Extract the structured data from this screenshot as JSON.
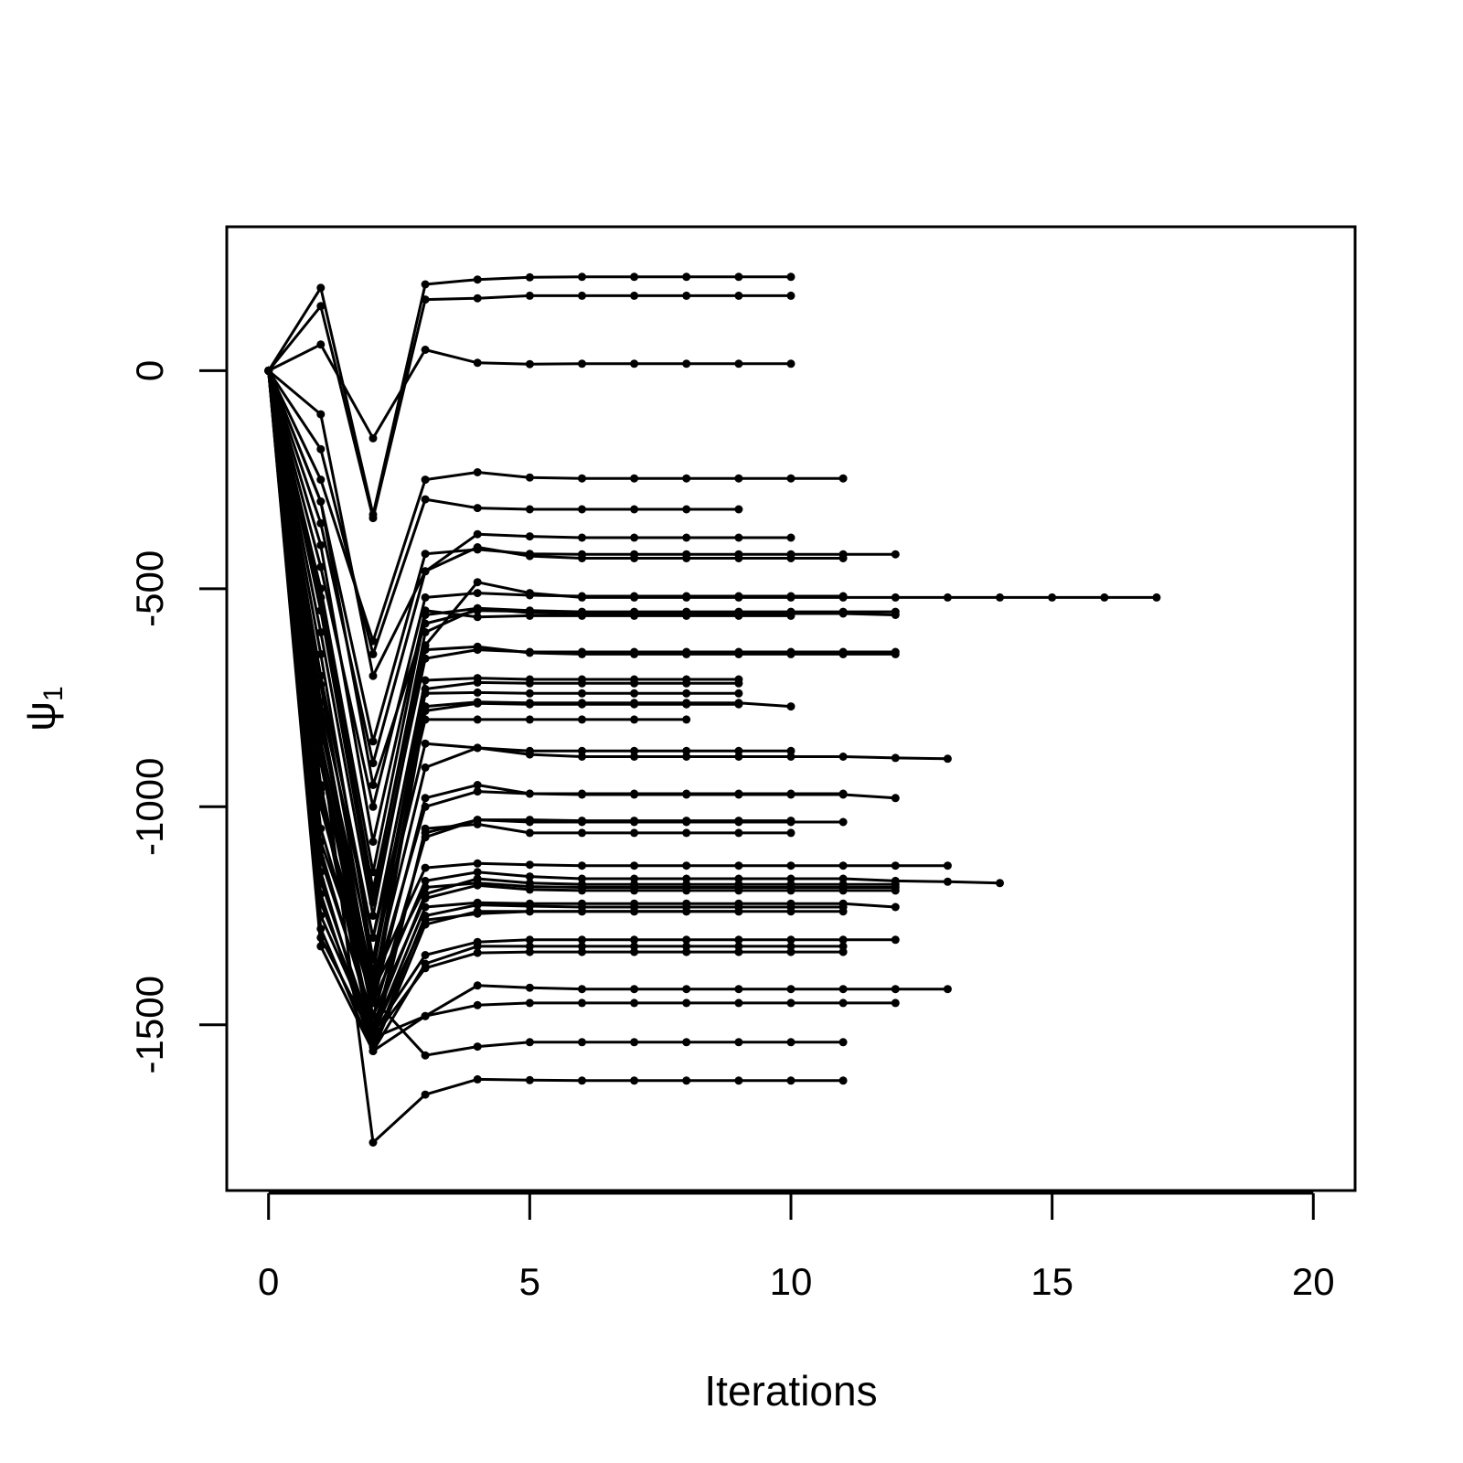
{
  "chart_data": {
    "type": "line",
    "title": "",
    "xlabel": "Iterations",
    "ylabel": "ψ",
    "ylabel_subscript": "1",
    "xlim": [
      -0.8,
      20.8
    ],
    "ylim": [
      -1880,
      330
    ],
    "xticks": [
      0,
      5,
      10,
      15,
      20
    ],
    "yticks": [
      0,
      -500,
      -1000,
      -1500
    ],
    "grid": false,
    "legend": "none",
    "line_color": "#000000",
    "series": [
      {
        "x": [
          0,
          1,
          2,
          3,
          4,
          5,
          6,
          7,
          8,
          9,
          10
        ],
        "values": [
          0,
          190,
          -330,
          198,
          209,
          214,
          215,
          215,
          215,
          215,
          215
        ]
      },
      {
        "x": [
          0,
          1,
          2,
          3,
          4,
          5,
          6,
          7,
          8,
          9,
          10
        ],
        "values": [
          0,
          148,
          -338,
          163,
          166,
          172,
          172,
          172,
          172,
          172,
          172
        ]
      },
      {
        "x": [
          0,
          1,
          2,
          3,
          4,
          5,
          6,
          7,
          8,
          9,
          10
        ],
        "values": [
          0,
          60,
          -155,
          48,
          18,
          15,
          16,
          16,
          16,
          16,
          16
        ]
      },
      {
        "x": [
          0,
          1,
          2,
          3,
          4,
          5,
          6,
          7,
          8,
          9,
          10,
          11
        ],
        "values": [
          0,
          -250,
          -620,
          -250,
          -233,
          -245,
          -247,
          -247,
          -247,
          -247,
          -247,
          -247
        ]
      },
      {
        "x": [
          0,
          1,
          2,
          3,
          4,
          5,
          6,
          7,
          8,
          9
        ],
        "values": [
          0,
          -180,
          -650,
          -295,
          -315,
          -318,
          -318,
          -318,
          -318,
          -318
        ]
      },
      {
        "x": [
          0,
          1,
          2,
          3,
          4,
          5,
          6,
          7,
          8,
          9,
          10
        ],
        "values": [
          0,
          -100,
          -700,
          -460,
          -375,
          -380,
          -383,
          -383,
          -383,
          -383,
          -383
        ]
      },
      {
        "x": [
          0,
          1,
          2,
          3,
          4,
          5,
          6,
          7,
          8,
          9,
          10,
          11,
          12
        ],
        "values": [
          0,
          -300,
          -850,
          -420,
          -410,
          -420,
          -421,
          -421,
          -421,
          -421,
          -421,
          -421,
          -421
        ]
      },
      {
        "x": [
          0,
          1,
          2,
          3,
          4,
          5,
          6,
          7,
          8,
          9,
          10,
          11
        ],
        "values": [
          0,
          -350,
          -900,
          -460,
          -405,
          -425,
          -430,
          -430,
          -430,
          -430,
          -430,
          -430
        ]
      },
      {
        "x": [
          0,
          1,
          2,
          3,
          4,
          5,
          6,
          7,
          8,
          9,
          10,
          11,
          12,
          13,
          14,
          15,
          16,
          17
        ],
        "values": [
          0,
          -520,
          -1190,
          -630,
          -485,
          -510,
          -520,
          -520,
          -520,
          -520,
          -520,
          -520,
          -520,
          -520,
          -520,
          -520,
          -520,
          -520
        ]
      },
      {
        "x": [
          0,
          1,
          2,
          3,
          4,
          5,
          6,
          7,
          8,
          9,
          10,
          11
        ],
        "values": [
          0,
          -450,
          -1000,
          -520,
          -510,
          -515,
          -517,
          -517,
          -517,
          -517,
          -517,
          -517
        ]
      },
      {
        "x": [
          0,
          1,
          2,
          3,
          4,
          5,
          6,
          7,
          8,
          9,
          10,
          11,
          12
        ],
        "values": [
          0,
          -500,
          -1150,
          -560,
          -545,
          -550,
          -553,
          -553,
          -553,
          -553,
          -553,
          -553,
          -553
        ]
      },
      {
        "x": [
          0,
          1,
          2,
          3,
          4,
          5,
          6,
          7,
          8,
          9,
          10,
          11,
          12
        ],
        "values": [
          0,
          -520,
          -1200,
          -600,
          -545,
          -555,
          -557,
          -557,
          -557,
          -557,
          -557,
          -557,
          -560
        ]
      },
      {
        "x": [
          0,
          1,
          2,
          3,
          4,
          5,
          6,
          7,
          8,
          9,
          10
        ],
        "values": [
          0,
          -400,
          -1080,
          -550,
          -565,
          -562,
          -562,
          -562,
          -562,
          -562,
          -562
        ]
      },
      {
        "x": [
          0,
          1,
          2,
          3,
          4,
          5,
          6,
          7,
          8,
          9,
          10,
          11
        ],
        "values": [
          0,
          -300,
          -950,
          -580,
          -550,
          -552,
          -554,
          -554,
          -554,
          -554,
          -554,
          -554
        ]
      },
      {
        "x": [
          0,
          1,
          2,
          3,
          4,
          5,
          6,
          7,
          8,
          9,
          10,
          11,
          12
        ],
        "values": [
          0,
          -600,
          -1250,
          -640,
          -633,
          -647,
          -650,
          -650,
          -650,
          -650,
          -650,
          -650,
          -650
        ]
      },
      {
        "x": [
          0,
          1,
          2,
          3,
          4,
          5,
          6,
          7,
          8,
          9,
          10,
          11,
          12
        ],
        "values": [
          0,
          -550,
          -1220,
          -660,
          -640,
          -645,
          -645,
          -645,
          -645,
          -645,
          -645,
          -645,
          -645
        ]
      },
      {
        "x": [
          0,
          1,
          2,
          3,
          4,
          5,
          6,
          7,
          8,
          9
        ],
        "values": [
          0,
          -700,
          -1300,
          -710,
          -705,
          -708,
          -708,
          -708,
          -708,
          -708
        ]
      },
      {
        "x": [
          0,
          1,
          2,
          3,
          4,
          5,
          6,
          7,
          8,
          9
        ],
        "values": [
          0,
          -650,
          -1350,
          -730,
          -715,
          -717,
          -717,
          -717,
          -717,
          -717
        ]
      },
      {
        "x": [
          0,
          1,
          2,
          3,
          4,
          5,
          6,
          7,
          8,
          9
        ],
        "values": [
          0,
          -720,
          -1380,
          -740,
          -738,
          -740,
          -740,
          -740,
          -740,
          -740
        ]
      },
      {
        "x": [
          0,
          1,
          2,
          3,
          4,
          5,
          6,
          7,
          8,
          9,
          10
        ],
        "values": [
          0,
          -780,
          -1420,
          -770,
          -760,
          -762,
          -762,
          -762,
          -762,
          -762,
          -770
        ]
      },
      {
        "x": [
          0,
          1,
          2,
          3,
          4,
          5,
          6,
          7,
          8,
          9
        ],
        "values": [
          0,
          -800,
          -1450,
          -780,
          -763,
          -765,
          -765,
          -765,
          -765,
          -765
        ]
      },
      {
        "x": [
          0,
          1,
          2,
          3,
          4,
          5,
          6,
          7,
          8
        ],
        "values": [
          0,
          -760,
          -1300,
          -800,
          -800,
          -800,
          -800,
          -800,
          -800
        ]
      },
      {
        "x": [
          0,
          1,
          2,
          3,
          4,
          5,
          6,
          7,
          8,
          9,
          10
        ],
        "values": [
          0,
          -820,
          -1350,
          -855,
          -865,
          -872,
          -872,
          -872,
          -872,
          -872,
          -872
        ]
      },
      {
        "x": [
          0,
          1,
          2,
          3,
          4,
          5,
          6,
          7,
          8,
          9,
          10,
          11,
          12,
          13
        ],
        "values": [
          0,
          -850,
          -1400,
          -910,
          -865,
          -880,
          -885,
          -885,
          -885,
          -885,
          -885,
          -885,
          -888,
          -890
        ]
      },
      {
        "x": [
          0,
          1,
          2,
          3,
          4,
          5,
          6,
          7,
          8,
          9,
          10,
          11,
          12
        ],
        "values": [
          0,
          -900,
          -1450,
          -980,
          -950,
          -970,
          -972,
          -972,
          -972,
          -972,
          -972,
          -972,
          -980
        ]
      },
      {
        "x": [
          0,
          1,
          2,
          3,
          4,
          5,
          6,
          7,
          8,
          9,
          10,
          11
        ],
        "values": [
          0,
          -880,
          -1420,
          -1000,
          -965,
          -970,
          -970,
          -970,
          -970,
          -970,
          -970,
          -970
        ]
      },
      {
        "x": [
          0,
          1,
          2,
          3,
          4,
          5,
          6,
          7,
          8,
          9,
          10,
          11
        ],
        "values": [
          0,
          -950,
          -1520,
          -1060,
          -1030,
          -1035,
          -1035,
          -1035,
          -1035,
          -1035,
          -1035,
          -1035
        ]
      },
      {
        "x": [
          0,
          1,
          2,
          3,
          4,
          5,
          6,
          7,
          8,
          9,
          10
        ],
        "values": [
          0,
          -970,
          -1550,
          -1050,
          -1040,
          -1060,
          -1060,
          -1060,
          -1060,
          -1060,
          -1060
        ]
      },
      {
        "x": [
          0,
          1,
          2,
          3,
          4,
          5,
          6,
          7,
          8,
          9,
          10
        ],
        "values": [
          0,
          -900,
          -1480,
          -1070,
          -1030,
          -1030,
          -1032,
          -1032,
          -1032,
          -1032,
          -1032
        ]
      },
      {
        "x": [
          0,
          1,
          2,
          3,
          4,
          5,
          6,
          7,
          8,
          9,
          10,
          11,
          12,
          13
        ],
        "values": [
          0,
          -1000,
          -1400,
          -1140,
          -1130,
          -1133,
          -1135,
          -1135,
          -1135,
          -1135,
          -1135,
          -1135,
          -1135,
          -1135
        ]
      },
      {
        "x": [
          0,
          1,
          2,
          3,
          4,
          5,
          6,
          7,
          8,
          9,
          10,
          11,
          12,
          13,
          14
        ],
        "values": [
          0,
          -1050,
          -1450,
          -1170,
          -1150,
          -1160,
          -1165,
          -1165,
          -1165,
          -1165,
          -1165,
          -1165,
          -1170,
          -1172,
          -1175
        ]
      },
      {
        "x": [
          0,
          1,
          2,
          3,
          4,
          5,
          6,
          7,
          8,
          9,
          10,
          11,
          12
        ],
        "values": [
          0,
          -1100,
          -1500,
          -1200,
          -1165,
          -1175,
          -1178,
          -1178,
          -1178,
          -1178,
          -1178,
          -1178,
          -1178
        ]
      },
      {
        "x": [
          0,
          1,
          2,
          3,
          4,
          5,
          6,
          7,
          8,
          9,
          10,
          11,
          12
        ],
        "values": [
          0,
          -1080,
          -1420,
          -1185,
          -1175,
          -1183,
          -1185,
          -1185,
          -1185,
          -1185,
          -1185,
          -1185,
          -1185
        ]
      },
      {
        "x": [
          0,
          1,
          2,
          3,
          4,
          5,
          6,
          7,
          8,
          9,
          10,
          11,
          12
        ],
        "values": [
          0,
          -1120,
          -1480,
          -1210,
          -1180,
          -1190,
          -1192,
          -1192,
          -1192,
          -1192,
          -1192,
          -1192,
          -1192
        ]
      },
      {
        "x": [
          0,
          1,
          2,
          3,
          4,
          5,
          6,
          7,
          8,
          9,
          10,
          11
        ],
        "values": [
          0,
          -1150,
          -1550,
          -1250,
          -1225,
          -1228,
          -1230,
          -1230,
          -1230,
          -1230,
          -1230,
          -1230
        ]
      },
      {
        "x": [
          0,
          1,
          2,
          3,
          4,
          5,
          6,
          7,
          8,
          9,
          10,
          11,
          12
        ],
        "values": [
          0,
          -1170,
          -1520,
          -1230,
          -1220,
          -1222,
          -1222,
          -1222,
          -1222,
          -1222,
          -1222,
          -1222,
          -1230
        ]
      },
      {
        "x": [
          0,
          1,
          2,
          3,
          4,
          5,
          6,
          7,
          8,
          9
        ],
        "values": [
          0,
          -1200,
          -1560,
          -1270,
          -1240,
          -1240,
          -1240,
          -1240,
          -1240,
          -1240
        ]
      },
      {
        "x": [
          0,
          1,
          2,
          3,
          4,
          5,
          6,
          7,
          8,
          9,
          10,
          11
        ],
        "values": [
          0,
          -1220,
          -1520,
          -1260,
          -1245,
          -1240,
          -1240,
          -1240,
          -1240,
          -1240,
          -1240,
          -1240
        ]
      },
      {
        "x": [
          0,
          1,
          2,
          3,
          4,
          5,
          6,
          7,
          8,
          9,
          10,
          11,
          12
        ],
        "values": [
          0,
          -1250,
          -1520,
          -1340,
          -1310,
          -1305,
          -1305,
          -1305,
          -1305,
          -1305,
          -1305,
          -1305,
          -1305
        ]
      },
      {
        "x": [
          0,
          1,
          2,
          3,
          4,
          5,
          6,
          7,
          8,
          9,
          10,
          11
        ],
        "values": [
          0,
          -1280,
          -1560,
          -1360,
          -1320,
          -1320,
          -1320,
          -1320,
          -1320,
          -1320,
          -1320,
          -1320
        ]
      },
      {
        "x": [
          0,
          1,
          2,
          3,
          4,
          5,
          6,
          7,
          8,
          9,
          10,
          11
        ],
        "values": [
          0,
          -1300,
          -1530,
          -1370,
          -1335,
          -1333,
          -1333,
          -1333,
          -1333,
          -1333,
          -1333,
          -1333
        ]
      },
      {
        "x": [
          0,
          1,
          2,
          3,
          4,
          5,
          6,
          7,
          8,
          9,
          10,
          11,
          12,
          13
        ],
        "values": [
          0,
          -1320,
          -1560,
          -1480,
          -1410,
          -1415,
          -1418,
          -1418,
          -1418,
          -1418,
          -1418,
          -1418,
          -1418,
          -1418
        ]
      },
      {
        "x": [
          0,
          1,
          2,
          3,
          4,
          5,
          6,
          7,
          8,
          9,
          10,
          11,
          12
        ],
        "values": [
          0,
          -960,
          -1530,
          -1480,
          -1455,
          -1450,
          -1450,
          -1450,
          -1450,
          -1450,
          -1450,
          -1450,
          -1450
        ]
      },
      {
        "x": [
          0,
          1,
          2,
          3,
          4,
          5,
          6,
          7,
          8,
          9,
          10,
          11
        ],
        "values": [
          0,
          -1000,
          -1440,
          -1570,
          -1550,
          -1540,
          -1540,
          -1540,
          -1540,
          -1540,
          -1540,
          -1540
        ]
      },
      {
        "x": [
          0,
          1,
          2,
          3,
          4,
          5,
          6,
          7,
          8,
          9,
          10,
          11
        ],
        "values": [
          0,
          -850,
          -1770,
          -1660,
          -1625,
          -1627,
          -1628,
          -1628,
          -1628,
          -1628,
          -1628,
          -1628
        ]
      }
    ]
  }
}
